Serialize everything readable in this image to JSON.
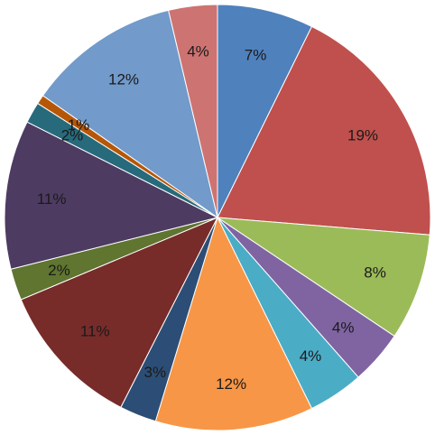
{
  "chart_data": {
    "type": "pie",
    "start_angle_deg": 0,
    "direction": "clockwise",
    "legend": "none",
    "slices": [
      {
        "label": "7%",
        "value": 7.3,
        "color": "#4F81BD"
      },
      {
        "label": "19%",
        "value": 19.0,
        "color": "#C0504D"
      },
      {
        "label": "8%",
        "value": 8.1,
        "color": "#9BBB59"
      },
      {
        "label": "4%",
        "value": 4.1,
        "color": "#8064A2"
      },
      {
        "label": "4%",
        "value": 4.2,
        "color": "#4BACC6"
      },
      {
        "label": "12%",
        "value": 12.0,
        "color": "#F79646"
      },
      {
        "label": "3%",
        "value": 2.8,
        "color": "#2C4D75"
      },
      {
        "label": "11%",
        "value": 11.2,
        "color": "#772C2A"
      },
      {
        "label": "2%",
        "value": 2.4,
        "color": "#5F7530"
      },
      {
        "label": "11%",
        "value": 11.3,
        "color": "#4D3B62"
      },
      {
        "label": "2%",
        "value": 1.6,
        "color": "#276A7C"
      },
      {
        "label": "1%",
        "value": 0.7,
        "color": "#B65708"
      },
      {
        "label": "12%",
        "value": 11.6,
        "color": "#729ACA"
      },
      {
        "label": "4%",
        "value": 3.7,
        "color": "#CD7371"
      }
    ]
  }
}
